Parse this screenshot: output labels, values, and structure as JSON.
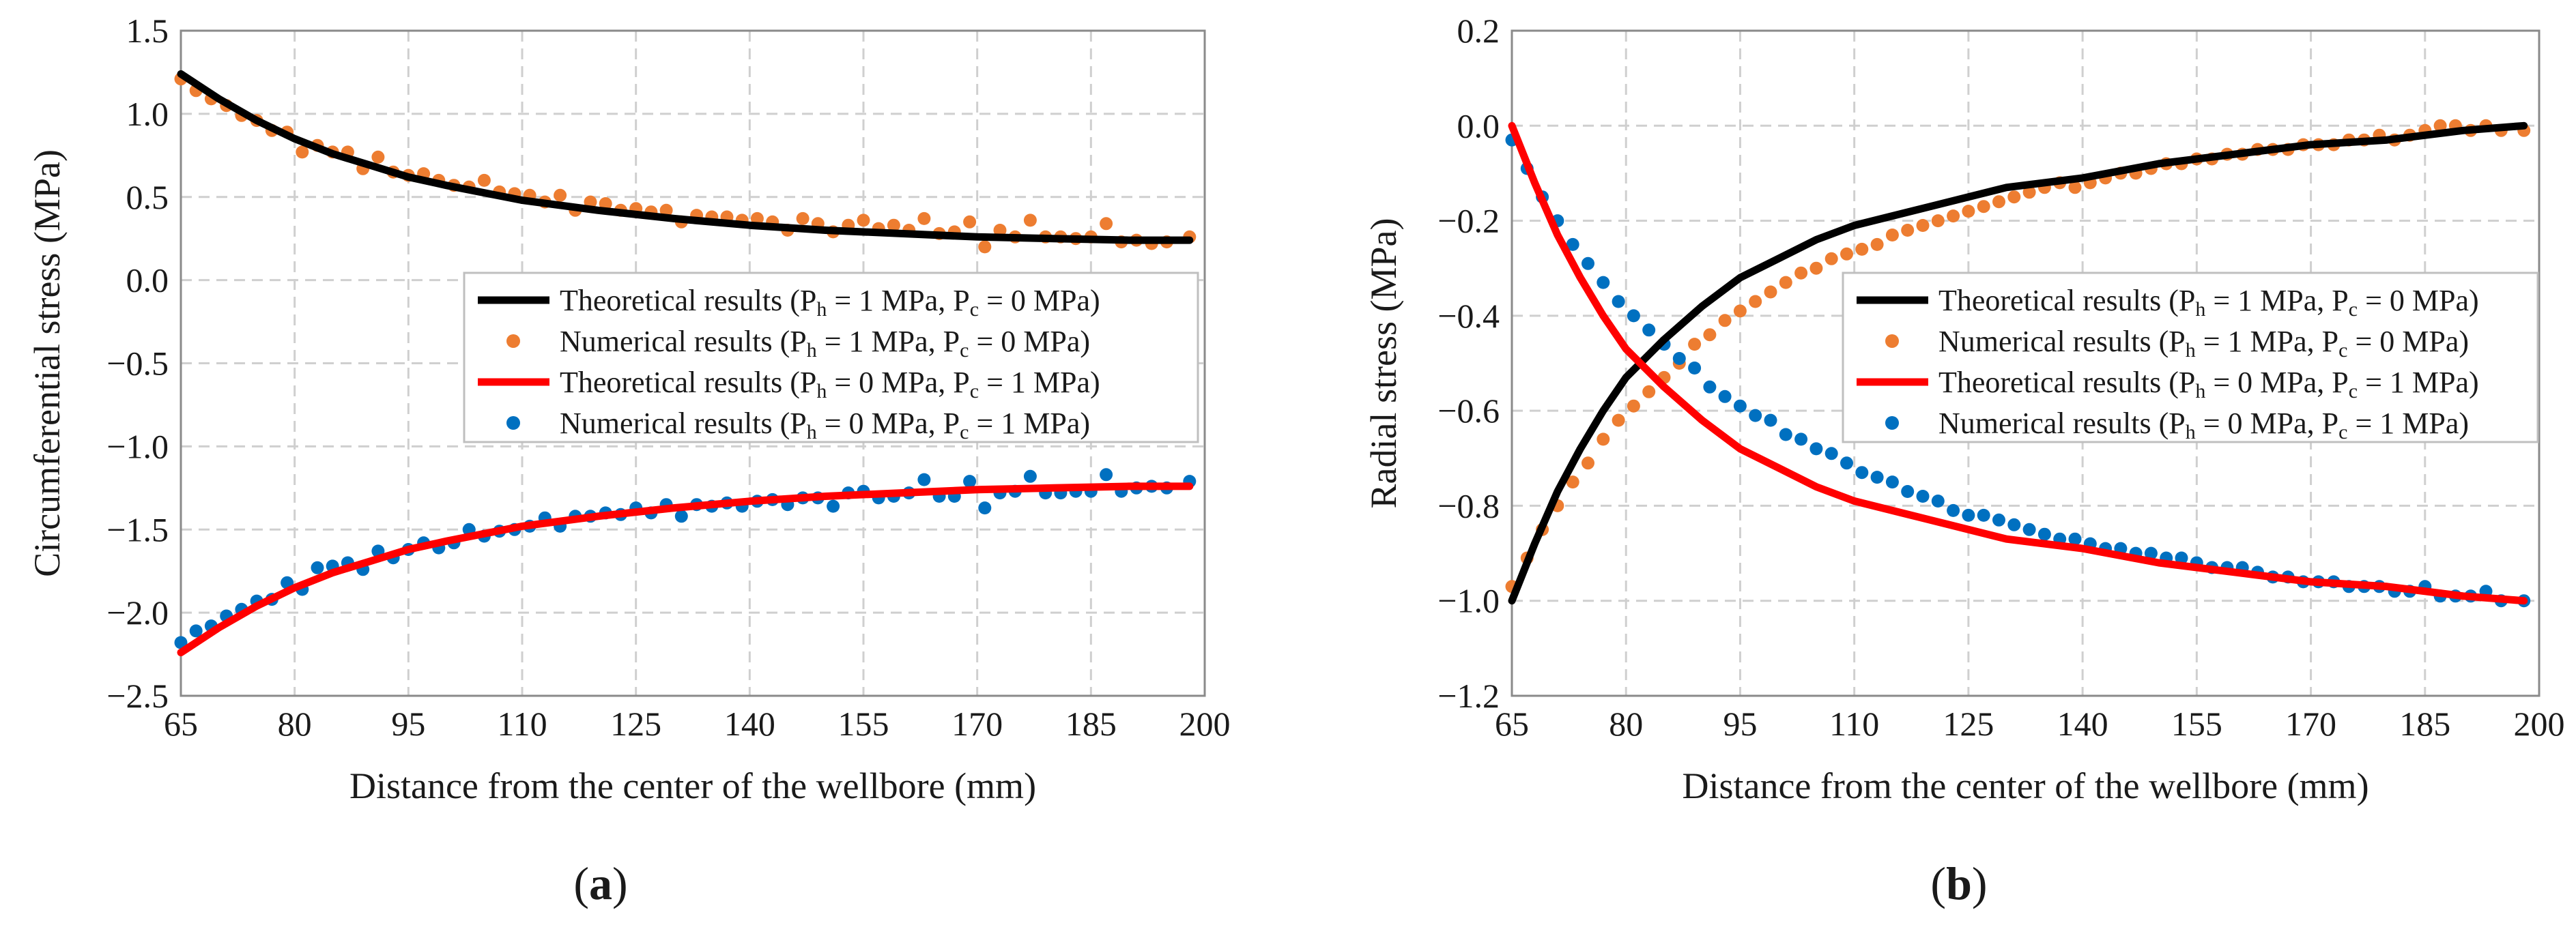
{
  "colors": {
    "theory_black": "#000000",
    "theory_red": "#ff0000",
    "numeric_orange": "#ed7d31",
    "numeric_blue": "#0070c0"
  },
  "chart_data": [
    {
      "type": "line",
      "panel_label": {
        "pre": "(",
        "letter": "a",
        "post": ")"
      },
      "xlabel": "Distance from the center of the wellbore (mm)",
      "ylabel": "Circumferential stress (MPa)",
      "xlim": [
        65,
        200
      ],
      "ylim": [
        -2.5,
        1.5
      ],
      "xticks": [
        "65",
        "80",
        "95",
        "110",
        "125",
        "140",
        "155",
        "170",
        "185",
        "200"
      ],
      "yticks": [
        "1.5",
        "1.0",
        "0.5",
        "0.0",
        "−0.5",
        "−1.0",
        "−1.5",
        "−2.0",
        "−2.5"
      ],
      "grid": true,
      "legend_position": "right",
      "series": [
        {
          "name": "Theoretical results (P_h = 1 MPa, P_c = 0 MPa)",
          "kind": "line",
          "color": "#000000",
          "x": [
            65,
            70,
            75,
            80,
            85,
            90,
            95,
            100,
            110,
            120,
            130,
            140,
            150,
            160,
            170,
            180,
            190,
            198
          ],
          "y": [
            1.24,
            1.09,
            0.96,
            0.85,
            0.76,
            0.69,
            0.62,
            0.57,
            0.48,
            0.42,
            0.37,
            0.33,
            0.3,
            0.28,
            0.26,
            0.25,
            0.24,
            0.24
          ]
        },
        {
          "name": "Numerical results (P_h = 1 MPa, P_c = 0 MPa)",
          "kind": "scatter",
          "color": "#ed7d31",
          "x": [
            65,
            67,
            69,
            71,
            73,
            75,
            77,
            79,
            81,
            83,
            85,
            87,
            89,
            91,
            93,
            95,
            97,
            99,
            101,
            103,
            105,
            107,
            109,
            111,
            113,
            115,
            117,
            119,
            121,
            123,
            125,
            127,
            129,
            131,
            133,
            135,
            137,
            139,
            141,
            143,
            145,
            147,
            149,
            151,
            153,
            155,
            157,
            159,
            161,
            163,
            165,
            167,
            169,
            171,
            173,
            175,
            177,
            179,
            181,
            183,
            185,
            187,
            189,
            191,
            193,
            195,
            198
          ],
          "y": [
            1.21,
            1.14,
            1.09,
            1.05,
            0.99,
            0.96,
            0.9,
            0.89,
            0.77,
            0.81,
            0.77,
            0.77,
            0.67,
            0.74,
            0.65,
            0.63,
            0.64,
            0.6,
            0.57,
            0.56,
            0.6,
            0.53,
            0.52,
            0.51,
            0.47,
            0.51,
            0.42,
            0.47,
            0.46,
            0.42,
            0.43,
            0.41,
            0.42,
            0.35,
            0.39,
            0.38,
            0.38,
            0.36,
            0.37,
            0.35,
            0.3,
            0.37,
            0.34,
            0.29,
            0.33,
            0.36,
            0.31,
            0.33,
            0.3,
            0.37,
            0.28,
            0.29,
            0.35,
            0.2,
            0.3,
            0.26,
            0.36,
            0.26,
            0.26,
            0.25,
            0.26,
            0.34,
            0.23,
            0.24,
            0.22,
            0.23,
            0.26
          ]
        },
        {
          "name": "Theoretical results (P_h = 0 MPa, P_c = 1 MPa)",
          "kind": "line",
          "color": "#ff0000",
          "x": [
            65,
            70,
            75,
            80,
            85,
            90,
            95,
            100,
            110,
            120,
            130,
            140,
            150,
            160,
            170,
            180,
            190,
            198
          ],
          "y": [
            -2.24,
            -2.09,
            -1.96,
            -1.85,
            -1.76,
            -1.69,
            -1.62,
            -1.57,
            -1.48,
            -1.42,
            -1.37,
            -1.33,
            -1.3,
            -1.28,
            -1.26,
            -1.25,
            -1.24,
            -1.24
          ]
        },
        {
          "name": "Numerical results (P_h = 0 MPa, P_c = 1 MPa)",
          "kind": "scatter",
          "color": "#0070c0",
          "x": [
            65,
            67,
            69,
            71,
            73,
            75,
            77,
            79,
            81,
            83,
            85,
            87,
            89,
            91,
            93,
            95,
            97,
            99,
            101,
            103,
            105,
            107,
            109,
            111,
            113,
            115,
            117,
            119,
            121,
            123,
            125,
            127,
            129,
            131,
            133,
            135,
            137,
            139,
            141,
            143,
            145,
            147,
            149,
            151,
            153,
            155,
            157,
            159,
            161,
            163,
            165,
            167,
            169,
            171,
            173,
            175,
            177,
            179,
            181,
            183,
            185,
            187,
            189,
            191,
            193,
            195,
            198
          ],
          "y": [
            -2.18,
            -2.11,
            -2.08,
            -2.02,
            -1.98,
            -1.93,
            -1.92,
            -1.82,
            -1.86,
            -1.73,
            -1.72,
            -1.7,
            -1.74,
            -1.63,
            -1.67,
            -1.62,
            -1.58,
            -1.61,
            -1.58,
            -1.5,
            -1.54,
            -1.51,
            -1.5,
            -1.48,
            -1.43,
            -1.48,
            -1.42,
            -1.42,
            -1.4,
            -1.41,
            -1.37,
            -1.4,
            -1.35,
            -1.42,
            -1.35,
            -1.36,
            -1.34,
            -1.36,
            -1.33,
            -1.32,
            -1.35,
            -1.31,
            -1.31,
            -1.36,
            -1.28,
            -1.27,
            -1.31,
            -1.3,
            -1.28,
            -1.2,
            -1.3,
            -1.3,
            -1.21,
            -1.37,
            -1.28,
            -1.27,
            -1.18,
            -1.28,
            -1.28,
            -1.27,
            -1.27,
            -1.17,
            -1.27,
            -1.25,
            -1.24,
            -1.25,
            -1.21
          ]
        }
      ],
      "legend": [
        {
          "kind": "line",
          "color": "#000000",
          "pre": "Theoretical results (P",
          "sub1": "h",
          "mid": " = 1 MPa, P",
          "sub2": "c",
          "post": " = 0 MPa)"
        },
        {
          "kind": "dot",
          "color": "#ed7d31",
          "pre": "Numerical results (P",
          "sub1": "h",
          "mid": " = 1 MPa, P",
          "sub2": "c",
          "post": " = 0 MPa)"
        },
        {
          "kind": "line",
          "color": "#ff0000",
          "pre": "Theoretical results (P",
          "sub1": "h",
          "mid": " = 0 MPa, P",
          "sub2": "c",
          "post": " = 1 MPa)"
        },
        {
          "kind": "dot",
          "color": "#0070c0",
          "pre": "Numerical results (P",
          "sub1": "h",
          "mid": " = 0 MPa, P",
          "sub2": "c",
          "post": " = 1 MPa)"
        }
      ]
    },
    {
      "type": "line",
      "panel_label": {
        "pre": "(",
        "letter": "b",
        "post": ")"
      },
      "xlabel": "Distance from the center of the wellbore (mm)",
      "ylabel": "Radial stress (MPa)",
      "xlim": [
        65,
        200
      ],
      "ylim": [
        -1.2,
        0.2
      ],
      "xticks": [
        "65",
        "80",
        "95",
        "110",
        "125",
        "140",
        "155",
        "170",
        "185",
        "200"
      ],
      "yticks": [
        "0.2",
        "0.0",
        "−0.2",
        "−0.4",
        "−0.6",
        "−0.8",
        "−1.0",
        "−1.2"
      ],
      "grid": true,
      "legend_position": "right",
      "series": [
        {
          "name": "Theoretical results (P_h = 1 MPa, P_c = 0 MPa)",
          "kind": "line",
          "color": "#000000",
          "x": [
            65,
            68,
            71,
            74,
            77,
            80,
            85,
            90,
            95,
            100,
            105,
            110,
            120,
            130,
            140,
            150,
            160,
            170,
            180,
            190,
            198
          ],
          "y": [
            -1.0,
            -0.88,
            -0.77,
            -0.68,
            -0.6,
            -0.53,
            -0.45,
            -0.38,
            -0.32,
            -0.28,
            -0.24,
            -0.21,
            -0.17,
            -0.13,
            -0.11,
            -0.08,
            -0.06,
            -0.04,
            -0.03,
            -0.01,
            0.0
          ]
        },
        {
          "name": "Numerical results (P_h = 1 MPa, P_c = 0 MPa)",
          "kind": "scatter",
          "color": "#ed7d31",
          "x": [
            65,
            67,
            69,
            71,
            73,
            75,
            77,
            79,
            81,
            83,
            85,
            87,
            89,
            91,
            93,
            95,
            97,
            99,
            101,
            103,
            105,
            107,
            109,
            111,
            113,
            115,
            117,
            119,
            121,
            123,
            125,
            127,
            129,
            131,
            133,
            135,
            137,
            139,
            141,
            143,
            145,
            147,
            149,
            151,
            153,
            155,
            157,
            159,
            161,
            163,
            165,
            167,
            169,
            171,
            173,
            175,
            177,
            179,
            181,
            183,
            185,
            187,
            189,
            191,
            193,
            195,
            198
          ],
          "y": [
            -0.97,
            -0.91,
            -0.85,
            -0.8,
            -0.75,
            -0.71,
            -0.66,
            -0.62,
            -0.59,
            -0.56,
            -0.53,
            -0.5,
            -0.46,
            -0.44,
            -0.41,
            -0.39,
            -0.37,
            -0.35,
            -0.33,
            -0.31,
            -0.3,
            -0.28,
            -0.27,
            -0.26,
            -0.25,
            -0.23,
            -0.22,
            -0.21,
            -0.2,
            -0.19,
            -0.18,
            -0.17,
            -0.16,
            -0.15,
            -0.14,
            -0.13,
            -0.12,
            -0.13,
            -0.12,
            -0.11,
            -0.1,
            -0.1,
            -0.09,
            -0.08,
            -0.08,
            -0.07,
            -0.07,
            -0.06,
            -0.06,
            -0.05,
            -0.05,
            -0.05,
            -0.04,
            -0.04,
            -0.04,
            -0.03,
            -0.03,
            -0.02,
            -0.03,
            -0.02,
            -0.01,
            0.0,
            0.0,
            -0.01,
            0.0,
            -0.01,
            -0.01
          ]
        },
        {
          "name": "Theoretical results (P_h = 0 MPa, P_c = 1 MPa)",
          "kind": "line",
          "color": "#ff0000",
          "x": [
            65,
            68,
            71,
            74,
            77,
            80,
            85,
            90,
            95,
            100,
            105,
            110,
            120,
            130,
            140,
            150,
            160,
            170,
            180,
            190,
            198
          ],
          "y": [
            0.0,
            -0.12,
            -0.23,
            -0.32,
            -0.4,
            -0.47,
            -0.55,
            -0.62,
            -0.68,
            -0.72,
            -0.76,
            -0.79,
            -0.83,
            -0.87,
            -0.89,
            -0.92,
            -0.94,
            -0.96,
            -0.97,
            -0.99,
            -1.0
          ]
        },
        {
          "name": "Numerical results (P_h = 0 MPa, P_c = 1 MPa)",
          "kind": "scatter",
          "color": "#0070c0",
          "x": [
            65,
            67,
            69,
            71,
            73,
            75,
            77,
            79,
            81,
            83,
            85,
            87,
            89,
            91,
            93,
            95,
            97,
            99,
            101,
            103,
            105,
            107,
            109,
            111,
            113,
            115,
            117,
            119,
            121,
            123,
            125,
            127,
            129,
            131,
            133,
            135,
            137,
            139,
            141,
            143,
            145,
            147,
            149,
            151,
            153,
            155,
            157,
            159,
            161,
            163,
            165,
            167,
            169,
            171,
            173,
            175,
            177,
            179,
            181,
            183,
            185,
            187,
            189,
            191,
            193,
            195,
            198
          ],
          "y": [
            -0.03,
            -0.09,
            -0.15,
            -0.2,
            -0.25,
            -0.29,
            -0.33,
            -0.37,
            -0.4,
            -0.43,
            -0.46,
            -0.49,
            -0.51,
            -0.55,
            -0.57,
            -0.59,
            -0.61,
            -0.62,
            -0.65,
            -0.66,
            -0.68,
            -0.69,
            -0.71,
            -0.73,
            -0.74,
            -0.75,
            -0.77,
            -0.78,
            -0.79,
            -0.81,
            -0.82,
            -0.82,
            -0.83,
            -0.84,
            -0.85,
            -0.86,
            -0.87,
            -0.87,
            -0.88,
            -0.89,
            -0.89,
            -0.9,
            -0.9,
            -0.91,
            -0.91,
            -0.92,
            -0.93,
            -0.93,
            -0.93,
            -0.94,
            -0.95,
            -0.95,
            -0.96,
            -0.96,
            -0.96,
            -0.97,
            -0.97,
            -0.97,
            -0.98,
            -0.98,
            -0.97,
            -0.99,
            -0.99,
            -0.99,
            -0.98,
            -1.0,
            -1.0
          ]
        }
      ],
      "legend": [
        {
          "kind": "line",
          "color": "#000000",
          "pre": "Theoretical results (P",
          "sub1": "h",
          "mid": " = 1 MPa, P",
          "sub2": "c",
          "post": " = 0 MPa)"
        },
        {
          "kind": "dot",
          "color": "#ed7d31",
          "pre": "Numerical results (P",
          "sub1": "h",
          "mid": " = 1 MPa, P",
          "sub2": "c",
          "post": " = 0 MPa)"
        },
        {
          "kind": "line",
          "color": "#ff0000",
          "pre": "Theoretical results (P",
          "sub1": "h",
          "mid": " = 0 MPa, P",
          "sub2": "c",
          "post": " = 1 MPa)"
        },
        {
          "kind": "dot",
          "color": "#0070c0",
          "pre": "Numerical results (P",
          "sub1": "h",
          "mid": " = 0 MPa, P",
          "sub2": "c",
          "post": " = 1 MPa)"
        }
      ]
    }
  ]
}
